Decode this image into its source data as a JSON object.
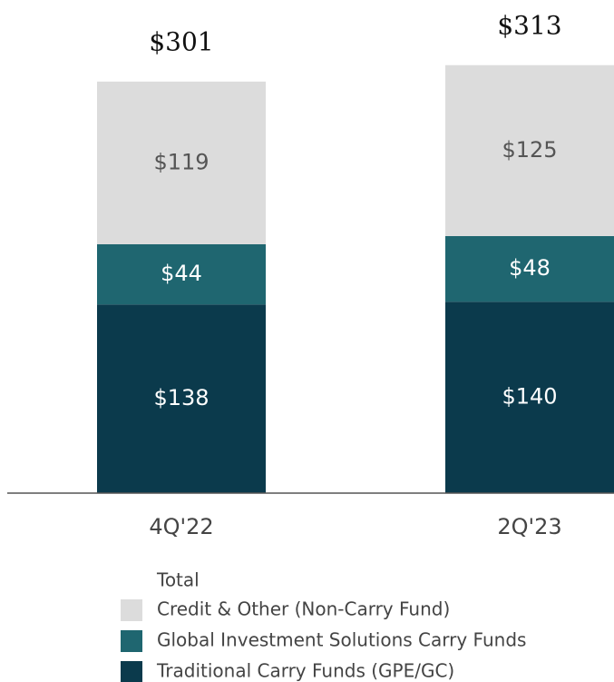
{
  "chart_data": {
    "type": "stacked_bar",
    "categories": [
      "4Q'22",
      "2Q'23"
    ],
    "series": [
      {
        "name": "Traditional Carry Funds (GPE/GC)",
        "color": "#0b3a4c",
        "values": [
          138,
          140
        ],
        "value_labels": [
          "$138",
          "$140"
        ]
      },
      {
        "name": "Global Investment Solutions Carry Funds",
        "color": "#1f6670",
        "values": [
          44,
          48
        ],
        "value_labels": [
          "$44",
          "$48"
        ]
      },
      {
        "name": "Credit & Other (Non-Carry Fund)",
        "color": "#dcdcdc",
        "values": [
          119,
          125
        ],
        "value_labels": [
          "$119",
          "$125"
        ]
      }
    ],
    "totals": {
      "name": "Total",
      "values": [
        301,
        313
      ],
      "value_labels": [
        "$301",
        "$313"
      ]
    },
    "ylim": [
      0,
      360
    ]
  }
}
